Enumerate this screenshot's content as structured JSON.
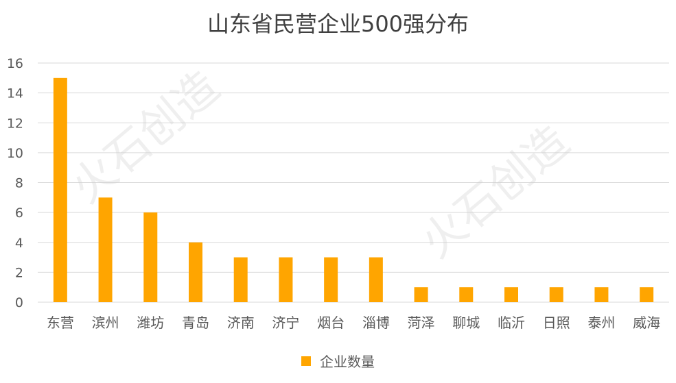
{
  "chart_data": {
    "type": "bar",
    "title": "山东省民营企业500强分布",
    "categories": [
      "东营",
      "滨州",
      "潍坊",
      "青岛",
      "济南",
      "济宁",
      "烟台",
      "淄博",
      "菏泽",
      "聊城",
      "临沂",
      "日照",
      "泰州",
      "威海"
    ],
    "series": [
      {
        "name": "企业数量",
        "values": [
          15,
          7,
          6,
          4,
          3,
          3,
          3,
          3,
          1,
          1,
          1,
          1,
          1,
          1
        ]
      }
    ],
    "ylim": [
      0,
      16
    ],
    "yticks": [
      "0",
      "2",
      "4",
      "6",
      "8",
      "10",
      "12",
      "14",
      "16"
    ],
    "grid": true,
    "legend_position": "bottom",
    "bar_color": "#FFA500"
  },
  "watermark": {
    "text": "火石创造"
  }
}
